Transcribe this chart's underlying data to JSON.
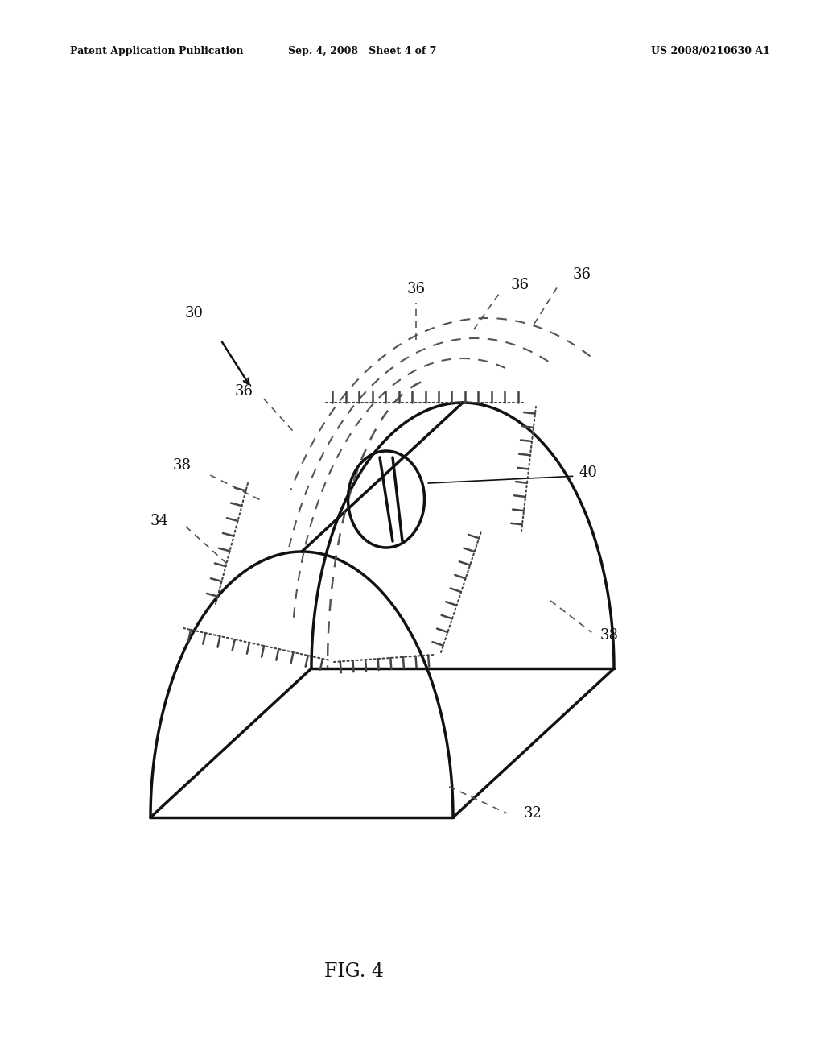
{
  "background_color": "#ffffff",
  "header_left": "Patent Application Publication",
  "header_mid": "Sep. 4, 2008   Sheet 4 of 7",
  "header_right": "US 2008/0210630 A1",
  "figure_label": "FIG. 4",
  "lw_main": 2.5,
  "lw_thin": 1.2,
  "lw_stitch_base": 1.2,
  "lw_tick": 1.8,
  "color_main": "#111111",
  "color_dashed": "#555555",
  "color_stitch": "#444444"
}
